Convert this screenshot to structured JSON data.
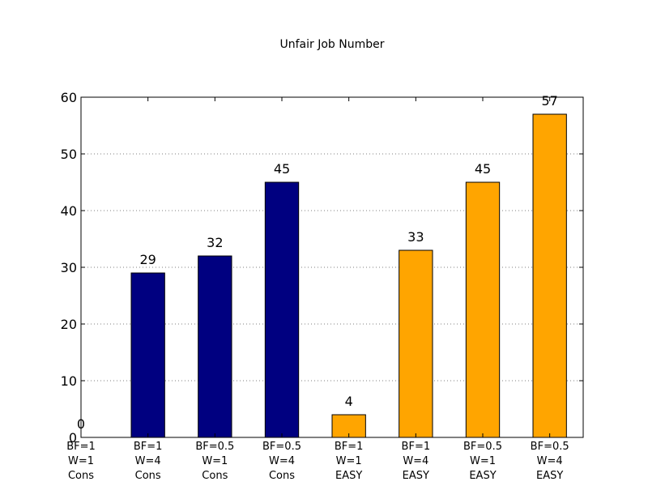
{
  "chart_data": {
    "type": "bar",
    "title": "Unfair Job Number",
    "xlabel": "",
    "ylabel": "",
    "ylim": [
      0,
      60
    ],
    "yticks": [
      0,
      10,
      20,
      30,
      40,
      50,
      60
    ],
    "grid": true,
    "categories": [
      [
        "BF=1",
        "W=1",
        "Cons"
      ],
      [
        "BF=1",
        "W=4",
        "Cons"
      ],
      [
        "BF=0.5",
        "W=1",
        "Cons"
      ],
      [
        "BF=0.5",
        "W=4",
        "Cons"
      ],
      [
        "BF=1",
        "W=1",
        "EASY"
      ],
      [
        "BF=1",
        "W=4",
        "EASY"
      ],
      [
        "BF=0.5",
        "W=1",
        "EASY"
      ],
      [
        "BF=0.5",
        "W=4",
        "EASY"
      ]
    ],
    "values": [
      0,
      29,
      32,
      45,
      4,
      33,
      45,
      57
    ],
    "colors": [
      "#000080",
      "#000080",
      "#000080",
      "#000080",
      "#FFA500",
      "#FFA500",
      "#FFA500",
      "#FFA500"
    ]
  }
}
